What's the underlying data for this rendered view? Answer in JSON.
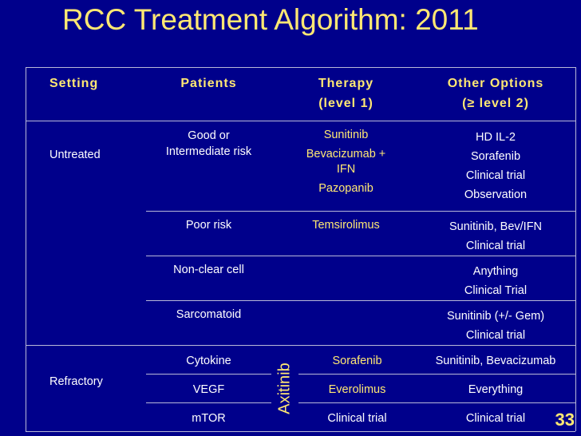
{
  "title": "RCC Treatment Algorithm: 2011",
  "headers": {
    "setting": "Setting",
    "patients": "Patients",
    "therapy_l1": "Therapy",
    "therapy_l2": "(level 1)",
    "other_l1": "Other Options",
    "other_l2": "(≥ level 2)"
  },
  "settings": {
    "untreated": "Untreated",
    "refractory": "Refractory"
  },
  "rows": [
    {
      "patients": [
        "Good or",
        "Intermediate risk"
      ],
      "therapy": [
        "Sunitinib",
        "Bevacizumab +",
        "IFN",
        "Pazopanib"
      ],
      "other": [
        "HD IL-2",
        "Sorafenib",
        "Clinical trial",
        "Observation"
      ]
    },
    {
      "patients": [
        "Poor risk"
      ],
      "therapy": [
        "Temsirolimus"
      ],
      "other": [
        "Sunitinib, Bev/IFN",
        "Clinical trial"
      ]
    },
    {
      "patients": [
        "Non-clear cell"
      ],
      "therapy": [],
      "other": [
        "Anything",
        "Clinical Trial"
      ]
    },
    {
      "patients": [
        "Sarcomatoid"
      ],
      "therapy": [],
      "other": [
        "Sunitinib (+/- Gem)",
        "Clinical trial"
      ]
    },
    {
      "patients": [
        "Cytokine"
      ],
      "therapy": [
        "Sorafenib"
      ],
      "other": [
        "Sunitinib, Bevacizumab"
      ]
    },
    {
      "patients": [
        "VEGF"
      ],
      "therapy": [
        "Everolimus"
      ],
      "other": [
        "Everything"
      ]
    },
    {
      "patients": [
        "mTOR"
      ],
      "therapy": [
        "Clinical trial"
      ],
      "other": [
        "Clinical trial"
      ]
    }
  ],
  "axitinib": "Axitinib",
  "page_number": "33",
  "colors": {
    "background": "#00008B",
    "accent": "#FFE873",
    "text": "#FFFFFF",
    "rule": "#B8B8D8"
  }
}
